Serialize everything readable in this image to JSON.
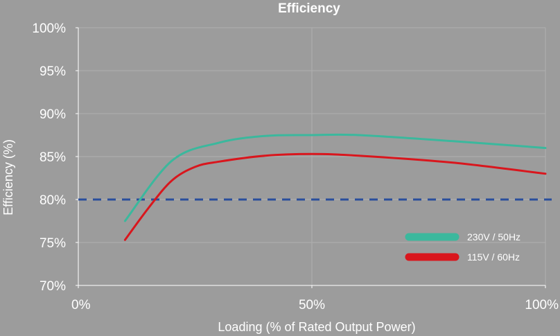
{
  "chart_data": {
    "type": "line",
    "title": "Efficiency",
    "xlabel": "Loading (% of Rated Output Power)",
    "ylabel": "Efficiency (%)",
    "xlim": [
      0,
      100
    ],
    "ylim": [
      70,
      100
    ],
    "x_ticks": [
      {
        "value": 0,
        "label": "0%"
      },
      {
        "value": 50,
        "label": "50%"
      },
      {
        "value": 100,
        "label": "100%"
      }
    ],
    "y_ticks": [
      {
        "value": 70,
        "label": "70%"
      },
      {
        "value": 75,
        "label": "75%"
      },
      {
        "value": 80,
        "label": "80%"
      },
      {
        "value": 85,
        "label": "85%"
      },
      {
        "value": 90,
        "label": "90%"
      },
      {
        "value": 95,
        "label": "95%"
      },
      {
        "value": 100,
        "label": "100%"
      }
    ],
    "grid": true,
    "legend_position": "bottom-right",
    "series": [
      {
        "name": "230V / 50Hz",
        "color": "#3bb89d",
        "points": [
          [
            10,
            77.5
          ],
          [
            20,
            84.5
          ],
          [
            30,
            86.6
          ],
          [
            40,
            87.4
          ],
          [
            50,
            87.5
          ],
          [
            60,
            87.5
          ],
          [
            80,
            86.8
          ],
          [
            100,
            86.0
          ]
        ]
      },
      {
        "name": "115V / 60Hz",
        "color": "#d9161d",
        "points": [
          [
            10,
            75.3
          ],
          [
            15,
            79.0
          ],
          [
            20,
            82.2
          ],
          [
            25,
            83.8
          ],
          [
            30,
            84.4
          ],
          [
            40,
            85.1
          ],
          [
            50,
            85.3
          ],
          [
            60,
            85.1
          ],
          [
            80,
            84.3
          ],
          [
            100,
            83.0
          ]
        ]
      }
    ],
    "reference_line": {
      "y": 80,
      "style": "dashed",
      "color": "#2a4e9c"
    }
  }
}
